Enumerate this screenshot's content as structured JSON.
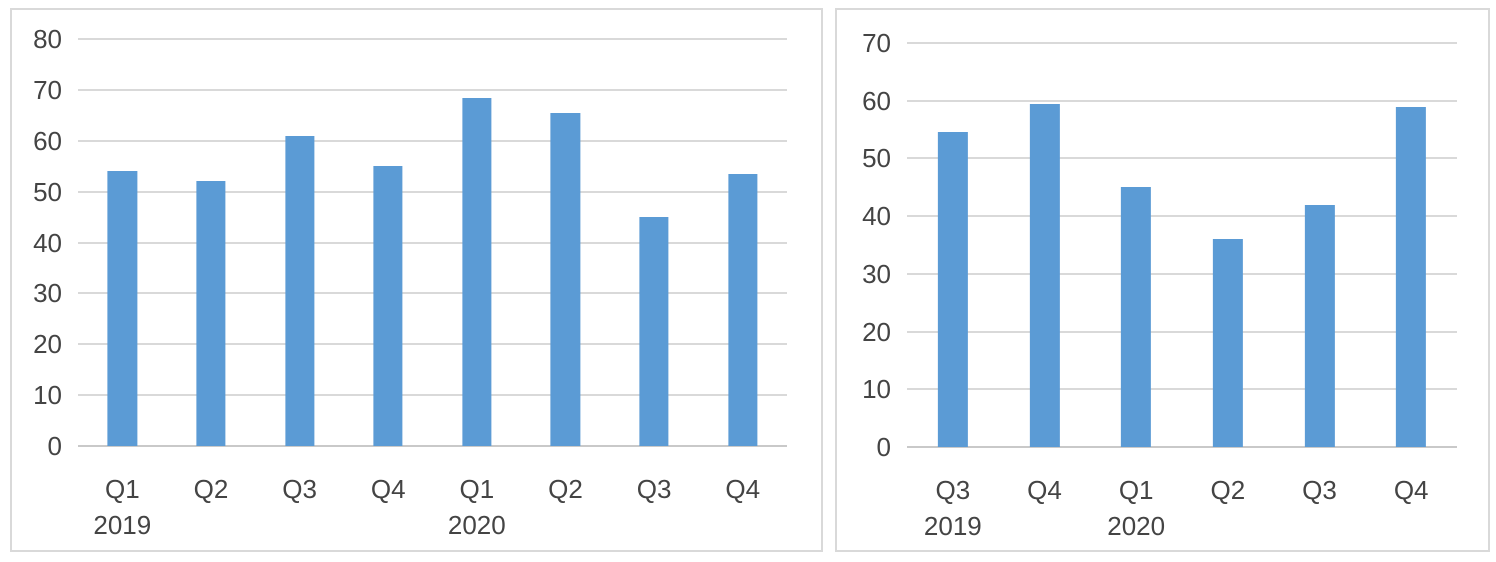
{
  "page": {
    "description": "Two quarterly bar charts side by side"
  },
  "colors": {
    "bar": "#5B9BD5",
    "gridline": "#D9D9D9",
    "axis_line": "#C9C9C9",
    "tick_label": "#444444",
    "panel_border": "#D9D9D9",
    "background": "#FFFFFF"
  },
  "chart_data": [
    {
      "type": "bar",
      "title": "",
      "xlabel": "",
      "ylabel": "",
      "legend": "none",
      "grid": true,
      "categories": [
        "Q1",
        "Q2",
        "Q3",
        "Q4",
        "Q1",
        "Q2",
        "Q3",
        "Q4"
      ],
      "group_labels": [
        {
          "index": 0,
          "label": "2019"
        },
        {
          "index": 4,
          "label": "2020"
        }
      ],
      "values": [
        54,
        52,
        61,
        55,
        68.5,
        65.5,
        45,
        53.5
      ],
      "ylim": [
        0,
        80
      ],
      "yticks": [
        0,
        10,
        20,
        30,
        40,
        50,
        60,
        70,
        80
      ]
    },
    {
      "type": "bar",
      "title": "",
      "xlabel": "",
      "ylabel": "",
      "legend": "none",
      "grid": true,
      "categories": [
        "Q3",
        "Q4",
        "Q1",
        "Q2",
        "Q3",
        "Q4"
      ],
      "group_labels": [
        {
          "index": 0,
          "label": "2019"
        },
        {
          "index": 2,
          "label": "2020"
        }
      ],
      "values": [
        54.5,
        59.5,
        45,
        36,
        42,
        59
      ],
      "ylim": [
        0,
        70
      ],
      "yticks": [
        0,
        10,
        20,
        30,
        40,
        50,
        60,
        70
      ]
    }
  ]
}
